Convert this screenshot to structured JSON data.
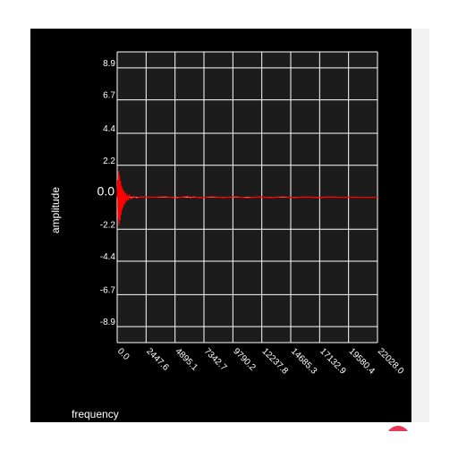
{
  "chart_data": {
    "type": "line",
    "title": "",
    "xlabel": "frequency",
    "ylabel": "amplitude",
    "xlim": [
      0,
      22028
    ],
    "ylim": [
      -10,
      10
    ],
    "x_ticks": [
      "0.0",
      "2447.6",
      "4895.1",
      "7342.7",
      "9790.2",
      "12237.8",
      "14685.3",
      "17132.9",
      "19580.4",
      "22028.0"
    ],
    "y_ticks": [
      {
        "label": "8.9",
        "value": 8.9
      },
      {
        "label": "6.7",
        "value": 6.7
      },
      {
        "label": "4.4",
        "value": 4.4
      },
      {
        "label": "2.2",
        "value": 2.2
      },
      {
        "label": "0.0",
        "value": 0.0
      },
      {
        "label": "-2.2",
        "value": -2.2
      },
      {
        "label": "-4.4",
        "value": -4.4
      },
      {
        "label": "-6.7",
        "value": -6.7
      },
      {
        "label": "-8.9",
        "value": -8.9
      }
    ],
    "grid": true,
    "series": [
      {
        "color": "#ff0000",
        "x": [
          0,
          40,
          80,
          120,
          160,
          200,
          240,
          280,
          320,
          360,
          400,
          450,
          500,
          560,
          620,
          700,
          780,
          860,
          950,
          1050,
          1200,
          1400,
          1600,
          2000,
          3000,
          4000,
          5000,
          6000,
          6200,
          6400,
          7000,
          8000,
          9000,
          10000,
          11000,
          12000,
          13000,
          14000,
          15000,
          16000,
          17000,
          18000,
          19000,
          20000,
          21000,
          22028
        ],
        "y": [
          0.0,
          1.2,
          -1.4,
          1.8,
          -1.9,
          1.5,
          -1.6,
          1.1,
          -1.2,
          0.8,
          -0.9,
          0.6,
          -0.7,
          0.45,
          -0.5,
          0.3,
          -0.3,
          0.2,
          -0.2,
          0.12,
          -0.1,
          0.06,
          -0.05,
          0.02,
          0.0,
          0.03,
          -0.03,
          0.05,
          -0.05,
          0.03,
          -0.02,
          0.03,
          -0.02,
          0.03,
          -0.03,
          0.02,
          -0.02,
          0.03,
          -0.02,
          0.02,
          -0.02,
          0.02,
          -0.01,
          0.01,
          -0.01,
          0.0
        ]
      }
    ]
  },
  "colors": {
    "panel_bg": "#000000",
    "plot_bg": "#1c1c1c",
    "grid": "#ffffff",
    "line": "#ff0000",
    "text": "#ffffff",
    "fab": "#e8385a"
  }
}
